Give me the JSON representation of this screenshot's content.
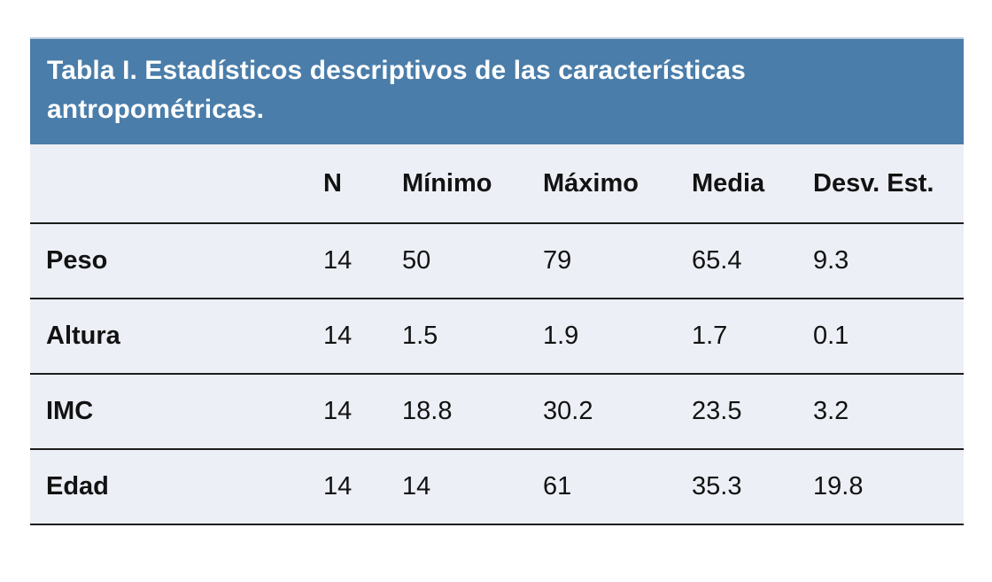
{
  "page": {
    "background_color": "#ffffff"
  },
  "table": {
    "title": "Tabla I. Estadísticos descriptivos de las características antropométricas.",
    "title_bg_color": "#4A7DA9",
    "title_text_color": "#ffffff",
    "row_bg_color": "#ECEFF5",
    "border_color": "#1c1c1c",
    "columns": [
      "",
      "N",
      "Mínimo",
      "Máximo",
      "Media",
      "Desv. Est."
    ],
    "rows": [
      {
        "label": "Peso",
        "values": [
          "14",
          "50",
          "79",
          "65.4",
          "9.3"
        ]
      },
      {
        "label": "Altura",
        "values": [
          "14",
          "1.5",
          "1.9",
          "1.7",
          "0.1"
        ]
      },
      {
        "label": "IMC",
        "values": [
          "14",
          "18.8",
          "30.2",
          "23.5",
          "3.2"
        ]
      },
      {
        "label": "Edad",
        "values": [
          "14",
          "14",
          "61",
          "35.3",
          "19.8"
        ]
      }
    ]
  },
  "chart_data": {
    "type": "table",
    "title": "Tabla I. Estadísticos descriptivos de las características antropométricas.",
    "columns": [
      "",
      "N",
      "Mínimo",
      "Máximo",
      "Media",
      "Desv. Est."
    ],
    "rows": [
      [
        "Peso",
        14,
        50,
        79,
        65.4,
        9.3
      ],
      [
        "Altura",
        14,
        1.5,
        1.9,
        1.7,
        0.1
      ],
      [
        "IMC",
        14,
        18.8,
        30.2,
        23.5,
        3.2
      ],
      [
        "Edad",
        14,
        14,
        61,
        35.3,
        19.8
      ]
    ]
  }
}
